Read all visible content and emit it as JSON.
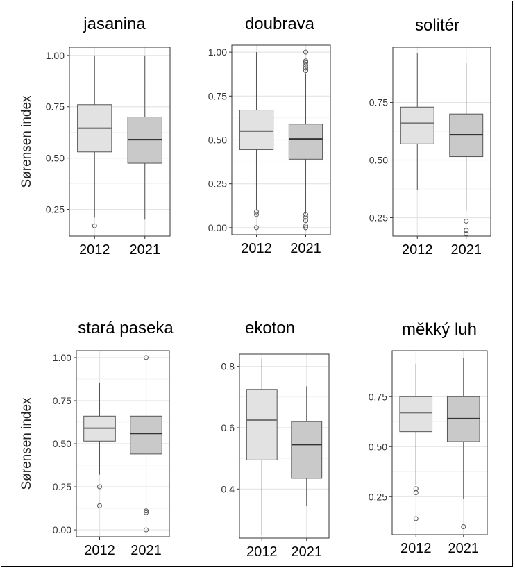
{
  "chart_data": [
    {
      "type": "box",
      "title": "jasanina",
      "ylabel": "Sørensen index",
      "categories": [
        "2012",
        "2021"
      ],
      "ylim": [
        0.12,
        1.04
      ],
      "yticks": [
        "0.25",
        "0.50",
        "0.75",
        "1.00"
      ],
      "boxes": [
        {
          "category": "2012",
          "whisker_low": 0.21,
          "q1": 0.53,
          "median": 0.645,
          "q3": 0.76,
          "whisker_high": 1.0,
          "outliers": [
            0.17
          ],
          "fill": "#e2e2e2"
        },
        {
          "category": "2021",
          "whisker_low": 0.2,
          "q1": 0.475,
          "median": 0.59,
          "q3": 0.7,
          "whisker_high": 1.0,
          "outliers": [],
          "fill": "#c9c9c9"
        }
      ]
    },
    {
      "type": "box",
      "title": "doubrava",
      "ylabel": "",
      "categories": [
        "2012",
        "2021"
      ],
      "ylim": [
        -0.04,
        1.04
      ],
      "yticks": [
        "0.00",
        "0.25",
        "0.50",
        "0.75",
        "1.00"
      ],
      "boxes": [
        {
          "category": "2012",
          "whisker_low": 0.1,
          "q1": 0.445,
          "median": 0.55,
          "q3": 0.67,
          "whisker_high": 1.0,
          "outliers": [
            0.0,
            0.075,
            0.09
          ],
          "fill": "#e2e2e2"
        },
        {
          "category": "2021",
          "whisker_low": 0.08,
          "q1": 0.39,
          "median": 0.505,
          "q3": 0.59,
          "whisker_high": 0.88,
          "outliers": [
            0.0,
            0.01,
            0.04,
            0.06,
            0.075,
            0.895,
            0.91,
            0.925,
            0.94,
            0.95,
            1.0
          ],
          "fill": "#c9c9c9"
        }
      ]
    },
    {
      "type": "box",
      "title": "solitér",
      "ylabel": "",
      "categories": [
        "2012",
        "2021"
      ],
      "ylim": [
        0.17,
        0.99
      ],
      "yticks": [
        "0.25",
        "0.50",
        "0.75"
      ],
      "boxes": [
        {
          "category": "2012",
          "whisker_low": 0.37,
          "q1": 0.57,
          "median": 0.66,
          "q3": 0.73,
          "whisker_high": 0.965,
          "outliers": [],
          "fill": "#e2e2e2"
        },
        {
          "category": "2021",
          "whisker_low": 0.28,
          "q1": 0.515,
          "median": 0.61,
          "q3": 0.7,
          "whisker_high": 0.92,
          "outliers": [
            0.18,
            0.195,
            0.235
          ],
          "fill": "#c9c9c9"
        }
      ]
    },
    {
      "type": "box",
      "title": "stará paseka",
      "ylabel": "Sørensen index",
      "categories": [
        "2012",
        "2021"
      ],
      "ylim": [
        -0.04,
        1.04
      ],
      "yticks": [
        "0.00",
        "0.25",
        "0.50",
        "0.75",
        "1.00"
      ],
      "boxes": [
        {
          "category": "2012",
          "whisker_low": 0.32,
          "q1": 0.515,
          "median": 0.59,
          "q3": 0.66,
          "whisker_high": 0.855,
          "outliers": [
            0.14,
            0.25
          ],
          "fill": "#e2e2e2"
        },
        {
          "category": "2021",
          "whisker_low": 0.13,
          "q1": 0.44,
          "median": 0.56,
          "q3": 0.66,
          "whisker_high": 0.94,
          "outliers": [
            0.0,
            0.1,
            0.11,
            1.0
          ],
          "fill": "#c9c9c9"
        }
      ]
    },
    {
      "type": "box",
      "title": "ekoton",
      "ylabel": "",
      "categories": [
        "2012",
        "2021"
      ],
      "ylim": [
        0.24,
        0.84
      ],
      "yticks": [
        "0.4",
        "0.6",
        "0.8"
      ],
      "boxes": [
        {
          "category": "2012",
          "whisker_low": 0.25,
          "q1": 0.495,
          "median": 0.625,
          "q3": 0.725,
          "whisker_high": 0.825,
          "outliers": [],
          "fill": "#e2e2e2"
        },
        {
          "category": "2021",
          "whisker_low": 0.345,
          "q1": 0.435,
          "median": 0.545,
          "q3": 0.62,
          "whisker_high": 0.735,
          "outliers": [],
          "fill": "#c9c9c9"
        }
      ]
    },
    {
      "type": "box",
      "title": "měkký luh",
      "ylabel": "",
      "categories": [
        "2012",
        "2021"
      ],
      "ylim": [
        0.06,
        0.98
      ],
      "yticks": [
        "0.25",
        "0.50",
        "0.75"
      ],
      "boxes": [
        {
          "category": "2012",
          "whisker_low": 0.31,
          "q1": 0.575,
          "median": 0.67,
          "q3": 0.75,
          "whisker_high": 0.915,
          "outliers": [
            0.14,
            0.27,
            0.29
          ],
          "fill": "#e2e2e2"
        },
        {
          "category": "2021",
          "whisker_low": 0.24,
          "q1": 0.525,
          "median": 0.64,
          "q3": 0.75,
          "whisker_high": 0.945,
          "outliers": [
            0.1
          ],
          "fill": "#c9c9c9"
        }
      ]
    }
  ]
}
